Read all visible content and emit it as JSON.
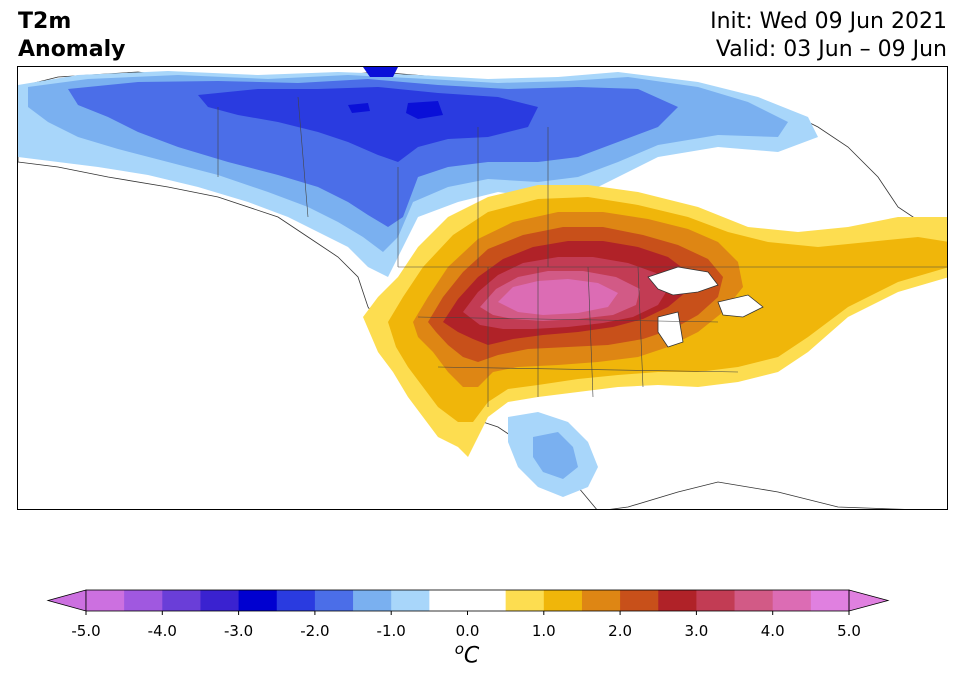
{
  "header": {
    "title_line1": "T2m",
    "title_line2": "Anomaly",
    "init_text": "Init: Wed 09 Jun 2021",
    "valid_text": "Valid: 03 Jun – 09 Jun"
  },
  "map": {
    "region": "North America",
    "features": [
      "continent-landmass",
      "state-borders",
      "lakes",
      "coastlines"
    ],
    "anomaly_regions": [
      {
        "name": "canada-arctic-cold",
        "level": "-3.0",
        "color": "#0a10d8"
      },
      {
        "name": "canada-cold",
        "level": "-2.0",
        "color": "#2a3be0"
      },
      {
        "name": "canada-cool",
        "level": "-1.5",
        "color": "#4b6ee8"
      },
      {
        "name": "canada-cool-edge",
        "level": "-1.0",
        "color": "#7ab0f0"
      },
      {
        "name": "canada-light-cool",
        "level": "-0.5",
        "color": "#a8d6fa"
      },
      {
        "name": "midwest-warm-edge",
        "level": "0.5",
        "color": "#fddd50"
      },
      {
        "name": "midwest-warm",
        "level": "1.0",
        "color": "#f0b60a"
      },
      {
        "name": "midwest-warm-2",
        "level": "1.5",
        "color": "#de8614"
      },
      {
        "name": "midwest-hot",
        "level": "2.0",
        "color": "#c8501a"
      },
      {
        "name": "midwest-hot-2",
        "level": "2.5",
        "color": "#b02228"
      },
      {
        "name": "midwest-very-hot",
        "level": "3.0",
        "color": "#c23c54"
      },
      {
        "name": "midwest-extreme",
        "level": "3.5",
        "color": "#d25a86"
      },
      {
        "name": "midwest-core",
        "level": "4.0",
        "color": "#dc6cb4"
      },
      {
        "name": "mexico-cool",
        "level": "-0.5",
        "color": "#a8d6fa"
      },
      {
        "name": "mexico-cool-2",
        "level": "-1.0",
        "color": "#7ab0f0"
      }
    ]
  },
  "colorbar": {
    "unit_base": "C",
    "unit_sup": "o",
    "ticks": [
      "-5.0",
      "-4.0",
      "-3.0",
      "-2.0",
      "-1.0",
      "0.0",
      "1.0",
      "2.0",
      "3.0",
      "4.0",
      "5.0"
    ],
    "colors": [
      "#cc70e0",
      "#a058e0",
      "#6a3ed8",
      "#3a22d0",
      "#0000d0",
      "#2a3be0",
      "#4b6ee8",
      "#7ab0f0",
      "#a8d6fa",
      "#ffffff",
      "#ffffff",
      "#fddd50",
      "#f0b60a",
      "#de8614",
      "#c8501a",
      "#b02228",
      "#c23c54",
      "#d25a86",
      "#dc6cb4",
      "#e080e0"
    ]
  }
}
